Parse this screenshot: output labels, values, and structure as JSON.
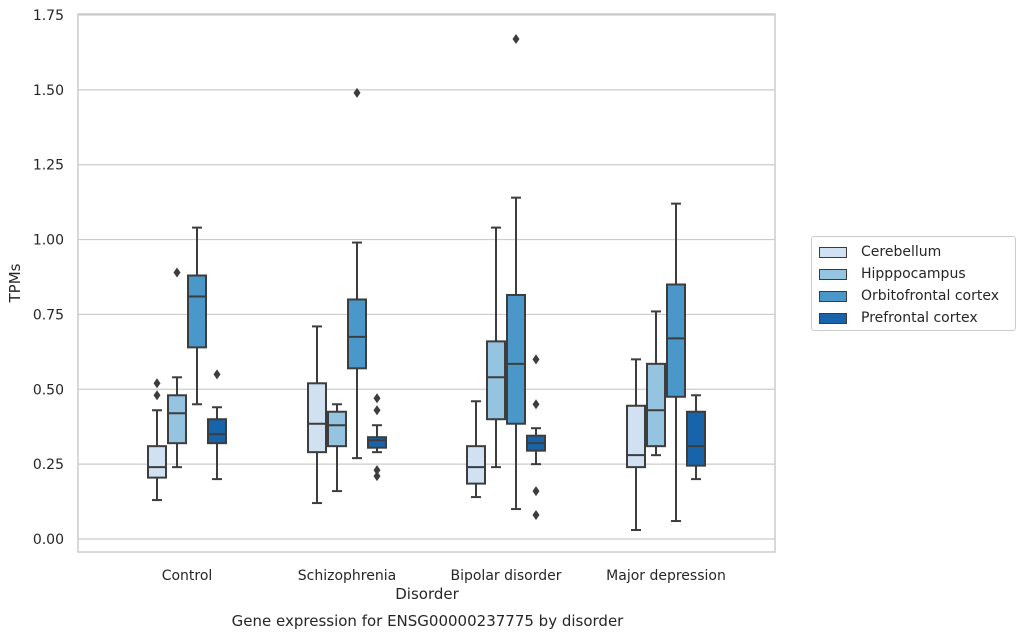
{
  "chart_data": {
    "type": "box",
    "title": "",
    "caption": "Gene expression for ENSG00000237775 by disorder",
    "xlabel": "Disorder",
    "ylabel": "TPMs",
    "ylim": [
      -0.05,
      1.75
    ],
    "yticks": [
      "0.00",
      "0.25",
      "0.50",
      "0.75",
      "1.00",
      "1.25",
      "1.50",
      "1.75"
    ],
    "ytick_values": [
      0,
      0.25,
      0.5,
      0.75,
      1.0,
      1.25,
      1.5,
      1.75
    ],
    "grid": "horizontal",
    "legend_position": "right",
    "categories": [
      "Control",
      "Schizophrenia",
      "Bipolar disorder",
      "Major depression"
    ],
    "series": [
      {
        "name": "Cerebellum",
        "color": "#d0e1f2",
        "boxes": [
          {
            "whisker_low": 0.13,
            "q1": 0.205,
            "median": 0.24,
            "q3": 0.31,
            "whisker_high": 0.43,
            "outliers": [
              0.48,
              0.52
            ]
          },
          {
            "whisker_low": 0.12,
            "q1": 0.29,
            "median": 0.385,
            "q3": 0.52,
            "whisker_high": 0.71,
            "outliers": []
          },
          {
            "whisker_low": 0.14,
            "q1": 0.185,
            "median": 0.24,
            "q3": 0.31,
            "whisker_high": 0.46,
            "outliers": []
          },
          {
            "whisker_low": 0.03,
            "q1": 0.24,
            "median": 0.28,
            "q3": 0.445,
            "whisker_high": 0.6,
            "outliers": []
          }
        ]
      },
      {
        "name": "Hipppocampus",
        "color": "#94c4df",
        "boxes": [
          {
            "whisker_low": 0.24,
            "q1": 0.32,
            "median": 0.42,
            "q3": 0.48,
            "whisker_high": 0.54,
            "outliers": [
              0.89
            ]
          },
          {
            "whisker_low": 0.16,
            "q1": 0.31,
            "median": 0.38,
            "q3": 0.425,
            "whisker_high": 0.45,
            "outliers": []
          },
          {
            "whisker_low": 0.24,
            "q1": 0.4,
            "median": 0.54,
            "q3": 0.66,
            "whisker_high": 1.04,
            "outliers": []
          },
          {
            "whisker_low": 0.28,
            "q1": 0.31,
            "median": 0.43,
            "q3": 0.585,
            "whisker_high": 0.76,
            "outliers": []
          }
        ]
      },
      {
        "name": "Orbitofrontal cortex",
        "color": "#4a98c9",
        "boxes": [
          {
            "whisker_low": 0.45,
            "q1": 0.64,
            "median": 0.81,
            "q3": 0.88,
            "whisker_high": 1.04,
            "outliers": []
          },
          {
            "whisker_low": 0.27,
            "q1": 0.57,
            "median": 0.675,
            "q3": 0.8,
            "whisker_high": 0.99,
            "outliers": [
              1.49
            ]
          },
          {
            "whisker_low": 0.1,
            "q1": 0.385,
            "median": 0.585,
            "q3": 0.815,
            "whisker_high": 1.14,
            "outliers": [
              1.67
            ]
          },
          {
            "whisker_low": 0.06,
            "q1": 0.475,
            "median": 0.67,
            "q3": 0.85,
            "whisker_high": 1.12,
            "outliers": []
          }
        ]
      },
      {
        "name": "Prefrontal cortex",
        "color": "#1764ab",
        "boxes": [
          {
            "whisker_low": 0.2,
            "q1": 0.32,
            "median": 0.35,
            "q3": 0.4,
            "whisker_high": 0.44,
            "outliers": [
              0.55
            ]
          },
          {
            "whisker_low": 0.29,
            "q1": 0.305,
            "median": 0.33,
            "q3": 0.34,
            "whisker_high": 0.38,
            "outliers": [
              0.21,
              0.23,
              0.43,
              0.47
            ]
          },
          {
            "whisker_low": 0.25,
            "q1": 0.295,
            "median": 0.32,
            "q3": 0.345,
            "whisker_high": 0.37,
            "outliers": [
              0.08,
              0.16,
              0.45,
              0.6
            ]
          },
          {
            "whisker_low": 0.2,
            "q1": 0.245,
            "median": 0.31,
            "q3": 0.425,
            "whisker_high": 0.48,
            "outliers": []
          }
        ]
      }
    ]
  }
}
